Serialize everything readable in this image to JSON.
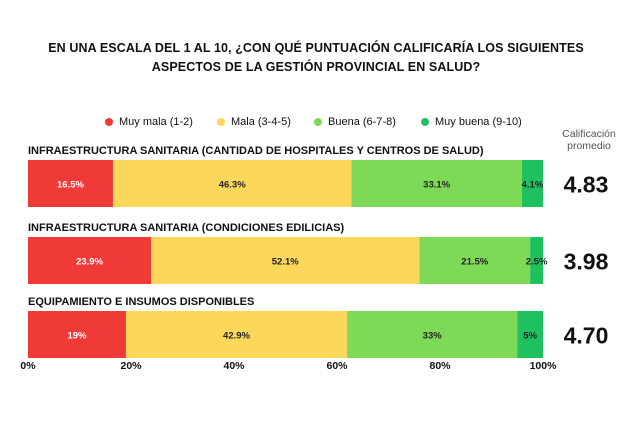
{
  "title": "EN UNA ESCALA DEL 1 AL 10, ¿CON QUÉ PUNTUACIÓN CALIFICARÍA LOS SIGUIENTES ASPECTOS DE LA GESTIÓN PROVINCIAL EN SALUD?",
  "legend": [
    {
      "label": "Muy mala (1-2)",
      "color": "#f03a37"
    },
    {
      "label": "Mala (3-4-5)",
      "color": "#fbd85b"
    },
    {
      "label": "Buena (6-7-8)",
      "color": "#7ed957"
    },
    {
      "label": "Muy buena (9-10)",
      "color": "#1fc15f"
    }
  ],
  "avg_header": "Calificación promedio",
  "chart_data": {
    "type": "bar",
    "orientation": "horizontal",
    "stacked": true,
    "categories": [
      "INFRAESTRUCTURA SANITARIA (CANTIDAD DE HOSPITALES Y CENTROS DE SALUD)",
      "INFRAESTRUCTURA SANITARIA (CONDICIONES EDILICIAS)",
      "EQUIPAMIENTO E INSUMOS DISPONIBLES"
    ],
    "series": [
      {
        "name": "Muy mala (1-2)",
        "color": "#f03a37",
        "values": [
          16.5,
          23.9,
          19
        ],
        "labels": [
          "16.5%",
          "23.9%",
          "19%"
        ]
      },
      {
        "name": "Mala (3-4-5)",
        "color": "#fbd85b",
        "values": [
          46.3,
          52.1,
          42.9
        ],
        "labels": [
          "46.3%",
          "52.1%",
          "42.9%"
        ]
      },
      {
        "name": "Buena (6-7-8)",
        "color": "#7ed957",
        "values": [
          33.1,
          21.5,
          33
        ],
        "labels": [
          "33.1%",
          "21.5%",
          "33%"
        ]
      },
      {
        "name": "Muy buena (9-10)",
        "color": "#1fc15f",
        "values": [
          4.1,
          2.5,
          5
        ],
        "labels": [
          "4.1%",
          "2.5%",
          "5%"
        ]
      }
    ],
    "averages": [
      "4.83",
      "3.98",
      "4.70"
    ],
    "xlim": [
      0,
      100
    ],
    "xticks": [
      "0%",
      "20%",
      "40%",
      "60%",
      "80%",
      "100%"
    ],
    "xlabel": "",
    "ylabel": "",
    "grid": false,
    "legend_position": "top"
  }
}
